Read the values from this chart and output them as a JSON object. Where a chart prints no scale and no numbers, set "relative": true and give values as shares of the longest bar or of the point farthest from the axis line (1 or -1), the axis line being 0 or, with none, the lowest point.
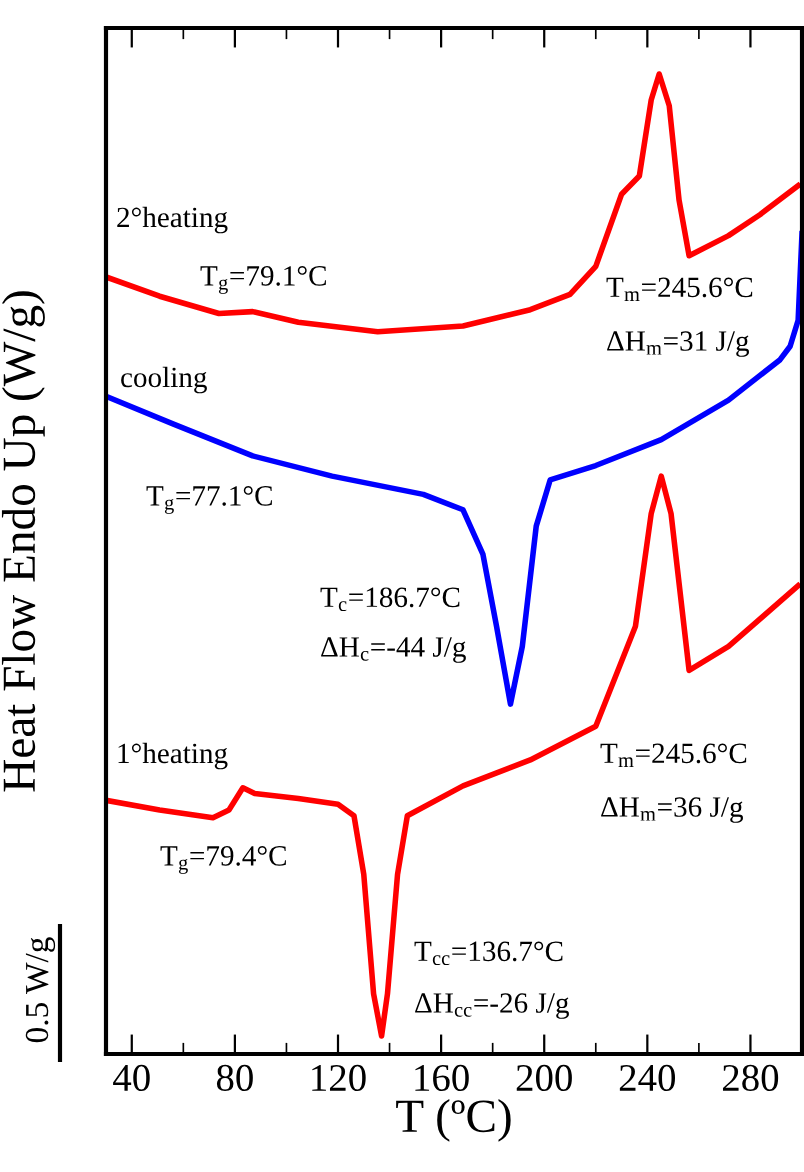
{
  "chart_data": {
    "type": "line",
    "relative": true,
    "xlabel": "T (ºC)",
    "ylabel": "Heat Flow Endo Up (W/g)",
    "xlim": [
      30,
      300
    ],
    "xticks": [
      40,
      80,
      120,
      160,
      200,
      240,
      280
    ],
    "marker": "none",
    "line_style": "solid",
    "series": [
      {
        "color": "#ff0000",
        "x": [
          30,
          50.8,
          73.8,
          86.9,
          104.6,
          135.4,
          168.5,
          194.6,
          210,
          220,
          230,
          236.9,
          241.5,
          244.6,
          248.5,
          252.3,
          256.2,
          271.5,
          283.8,
          298.5
        ],
        "values": [
          0.789,
          0.769,
          0.751,
          0.753,
          0.742,
          0.732,
          0.738,
          0.755,
          0.771,
          0.8,
          0.875,
          0.894,
          0.973,
          1.0,
          0.967,
          0.869,
          0.811,
          0.832,
          0.854,
          0.884
        ]
      },
      {
        "color": "#0000ff",
        "x": [
          30,
          56.2,
          86.9,
          117.7,
          153.1,
          168.5,
          176.2,
          181.5,
          186.9,
          191.5,
          196.9,
          202.3,
          220,
          245.4,
          271.5,
          291.5,
          295.4,
          298.5,
          300
        ],
        "values": [
          0.665,
          0.636,
          0.603,
          0.582,
          0.563,
          0.547,
          0.501,
          0.426,
          0.345,
          0.405,
          0.53,
          0.578,
          0.593,
          0.62,
          0.661,
          0.703,
          0.717,
          0.744,
          0.834
        ]
      },
      {
        "color": "#ff0000",
        "x": [
          30,
          50.8,
          71.5,
          77.7,
          83.1,
          87.7,
          104.6,
          120,
          126.2,
          130,
          133.8,
          136.9,
          139.2,
          143.1,
          146.9,
          168.5,
          194.6,
          220,
          235.4,
          241.5,
          245.4,
          249.2,
          256.2,
          271.5,
          298.5
        ],
        "values": [
          0.245,
          0.235,
          0.227,
          0.235,
          0.258,
          0.252,
          0.247,
          0.241,
          0.229,
          0.168,
          0.044,
          0.0,
          0.044,
          0.168,
          0.229,
          0.26,
          0.287,
          0.322,
          0.426,
          0.543,
          0.582,
          0.543,
          0.38,
          0.405,
          0.468
        ]
      }
    ],
    "annotations": [
      "2°heating",
      "T$_{g}$=79.1°C",
      "T$_{m}$=245.6°C",
      "ΔH$_{m}$=31 J/g",
      "cooling",
      "T$_{g}$=77.1°C",
      "T$_{c}$=186.7°C",
      "ΔH$_{c}$=-44 J/g",
      "1°heating",
      "T$_{m}$=245.6°C",
      "ΔH$_{m}$=36 J/g",
      "T$_{g}$=79.4°C",
      "T$_{cc}$=136.7°C",
      "ΔH$_{cc}$=-26 J/g",
      "0.5 W/g"
    ]
  }
}
